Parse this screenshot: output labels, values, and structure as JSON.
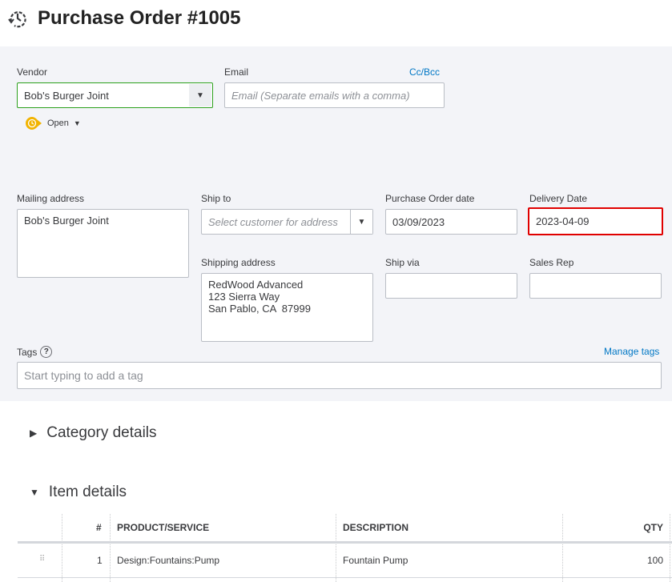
{
  "header": {
    "title": "Purchase Order #1005",
    "icon": "recent-transactions-icon"
  },
  "vendor": {
    "label": "Vendor",
    "value": "Bob's Burger Joint"
  },
  "email": {
    "label": "Email",
    "placeholder": "Email (Separate emails with a comma)",
    "cc_bcc": "Cc/Bcc"
  },
  "status": {
    "value": "Open",
    "color": "#f2b300"
  },
  "mailing": {
    "label": "Mailing address",
    "lines": [
      "Bob's Burger Joint"
    ]
  },
  "ship_to": {
    "label": "Ship to",
    "placeholder": "Select customer for address"
  },
  "po_date": {
    "label": "Purchase Order date",
    "value": "03/09/2023"
  },
  "delivery": {
    "label": "Delivery Date",
    "value": "2023-04-09",
    "highlight_color": "#e00000"
  },
  "shipping": {
    "label": "Shipping address",
    "lines": [
      "RedWood Advanced",
      "123 Sierra Way",
      "San Pablo, CA  87999"
    ]
  },
  "ship_via": {
    "label": "Ship via",
    "value": ""
  },
  "sales_rep": {
    "label": "Sales Rep",
    "value": ""
  },
  "tags": {
    "label": "Tags",
    "placeholder": "Start typing to add a tag",
    "manage": "Manage tags"
  },
  "sections": {
    "category": "Category details",
    "items": "Item details"
  },
  "table": {
    "headers": [
      "#",
      "PRODUCT/SERVICE",
      "DESCRIPTION",
      "QTY"
    ],
    "rows": [
      {
        "num": "1",
        "product": "Design:Fountains:Pump",
        "description": "Fountain Pump",
        "qty": "100"
      }
    ]
  }
}
